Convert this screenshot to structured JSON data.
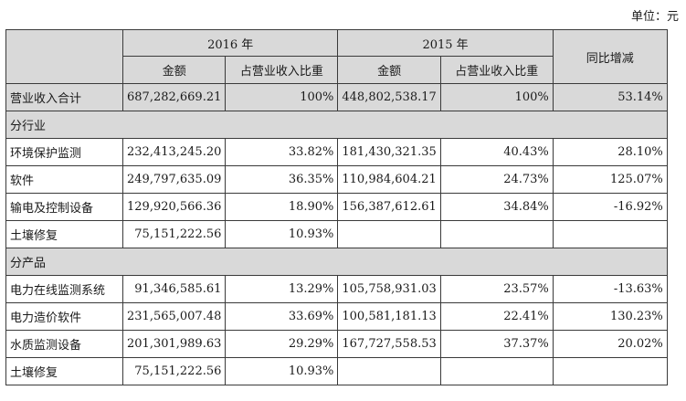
{
  "unit_label": "单位：元",
  "header": {
    "year_2016": "2016 年",
    "year_2015": "2015 年",
    "yoy": "同比增减",
    "amount": "金额",
    "share": "占营业收入比重"
  },
  "total": {
    "label": "营业收入合计",
    "amt2016": "687,282,669.21",
    "pct2016": "100%",
    "amt2015": "448,802,538.17",
    "pct2015": "100%",
    "yoy": "53.14%"
  },
  "section_industry": "分行业",
  "industry": [
    {
      "label": "环境保护监测",
      "amt2016": "232,413,245.20",
      "pct2016": "33.82%",
      "amt2015": "181,430,321.35",
      "pct2015": "40.43%",
      "yoy": "28.10%"
    },
    {
      "label": "软件",
      "amt2016": "249,797,635.09",
      "pct2016": "36.35%",
      "amt2015": "110,984,604.21",
      "pct2015": "24.73%",
      "yoy": "125.07%"
    },
    {
      "label": "输电及控制设备",
      "amt2016": "129,920,566.36",
      "pct2016": "18.90%",
      "amt2015": "156,387,612.61",
      "pct2015": "34.84%",
      "yoy": "-16.92%"
    },
    {
      "label": "土壤修复",
      "amt2016": "75,151,222.56",
      "pct2016": "10.93%",
      "amt2015": "",
      "pct2015": "",
      "yoy": ""
    }
  ],
  "section_product": "分产品",
  "product": [
    {
      "label": "电力在线监测系统",
      "amt2016": "91,346,585.61",
      "pct2016": "13.29%",
      "amt2015": "105,758,931.03",
      "pct2015": "23.57%",
      "yoy": "-13.63%"
    },
    {
      "label": "电力造价软件",
      "amt2016": "231,565,007.48",
      "pct2016": "33.69%",
      "amt2015": "100,581,181.13",
      "pct2015": "22.41%",
      "yoy": "130.23%"
    },
    {
      "label": "水质监测设备",
      "amt2016": "201,301,989.63",
      "pct2016": "29.29%",
      "amt2015": "167,727,558.53",
      "pct2015": "37.37%",
      "yoy": "20.02%"
    },
    {
      "label": "土壤修复",
      "amt2016": "75,151,222.56",
      "pct2016": "10.93%",
      "amt2015": "",
      "pct2015": "",
      "yoy": ""
    }
  ]
}
